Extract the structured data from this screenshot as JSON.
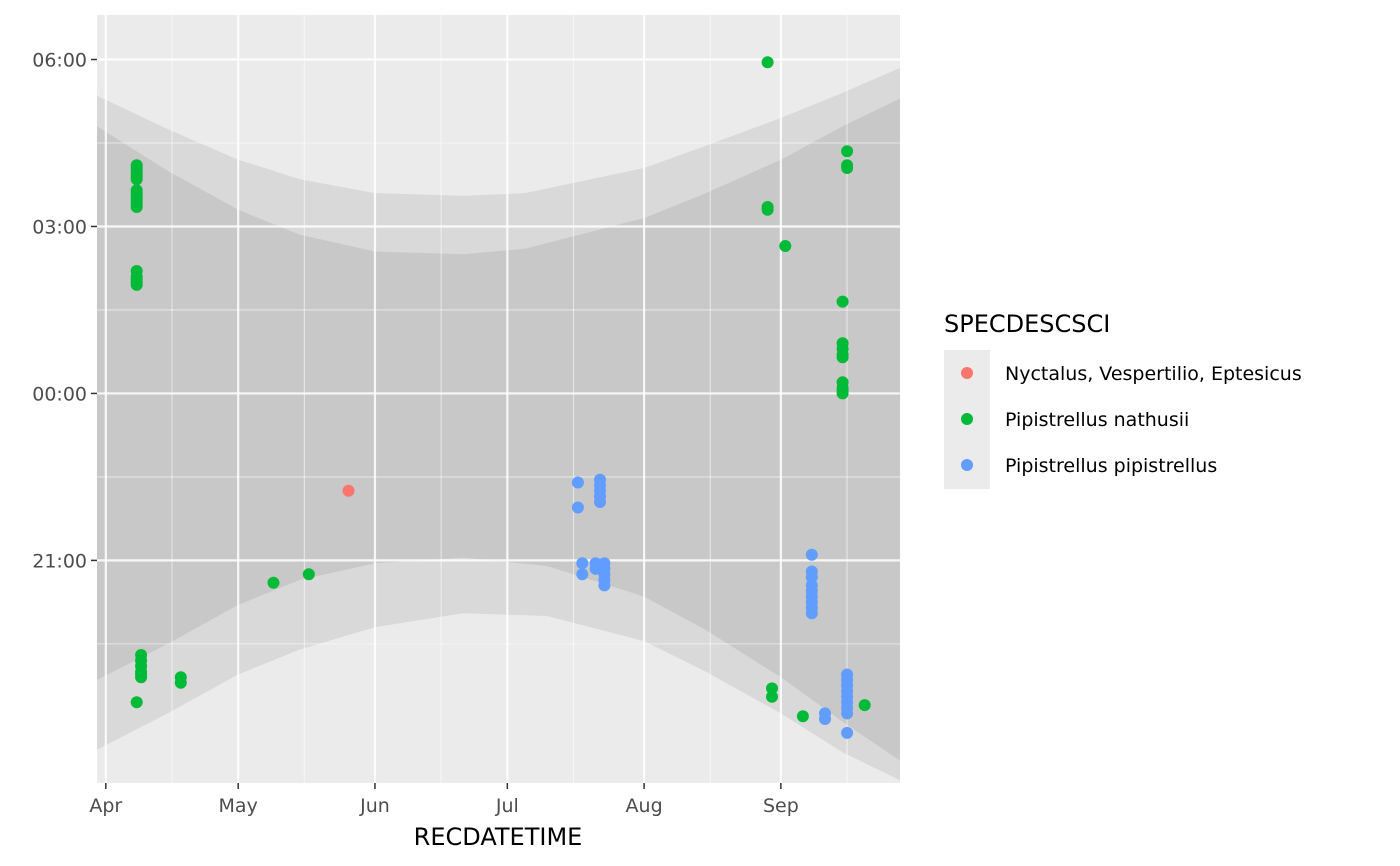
{
  "chart_data": {
    "type": "scatter",
    "xlabel": "RECDATETIME",
    "ylabel": "",
    "x_axis_type": "date",
    "y_axis_type": "time-of-night",
    "xlim": [
      "2023-03-30",
      "2023-09-28"
    ],
    "ylim_hours": [
      17.0,
      30.8
    ],
    "x_ticks": [
      {
        "date": "2023-04-01",
        "label": "Apr"
      },
      {
        "date": "2023-05-01",
        "label": "May"
      },
      {
        "date": "2023-06-01",
        "label": "Jun"
      },
      {
        "date": "2023-07-01",
        "label": "Jul"
      },
      {
        "date": "2023-08-01",
        "label": "Aug"
      },
      {
        "date": "2023-09-01",
        "label": "Sep"
      }
    ],
    "x_minor_dates": [
      "2023-04-16",
      "2023-05-16",
      "2023-06-16",
      "2023-07-16",
      "2023-08-16",
      "2023-09-16"
    ],
    "y_ticks": [
      {
        "hour": 21,
        "label": "21:00"
      },
      {
        "hour": 24,
        "label": "00:00"
      },
      {
        "hour": 27,
        "label": "03:00"
      },
      {
        "hour": 30,
        "label": "06:00"
      }
    ],
    "y_minor_hours": [
      19.5,
      22.5,
      25.5,
      28.5
    ],
    "grid": true,
    "legend": {
      "title": "SPECDESCSCI",
      "position": "right"
    },
    "bands": [
      {
        "name": "night",
        "color": "#c8c8c8",
        "lower": [
          [
            "2023-03-30",
            18.85
          ],
          [
            "2023-04-15",
            19.5
          ],
          [
            "2023-05-01",
            20.2
          ],
          [
            "2023-05-15",
            20.65
          ],
          [
            "2023-06-01",
            20.95
          ],
          [
            "2023-06-21",
            21.05
          ],
          [
            "2023-07-10",
            20.9
          ],
          [
            "2023-08-01",
            20.35
          ],
          [
            "2023-08-15",
            19.75
          ],
          [
            "2023-09-01",
            18.9
          ],
          [
            "2023-09-15",
            18.1
          ],
          [
            "2023-09-28",
            17.4
          ]
        ],
        "upper": [
          [
            "2023-03-30",
            28.8
          ],
          [
            "2023-04-15",
            28.0
          ],
          [
            "2023-05-01",
            27.3
          ],
          [
            "2023-05-15",
            26.85
          ],
          [
            "2023-06-01",
            26.55
          ],
          [
            "2023-06-21",
            26.5
          ],
          [
            "2023-07-05",
            26.6
          ],
          [
            "2023-08-01",
            27.15
          ],
          [
            "2023-08-15",
            27.6
          ],
          [
            "2023-09-01",
            28.2
          ],
          [
            "2023-09-15",
            28.8
          ],
          [
            "2023-09-28",
            29.3
          ]
        ]
      },
      {
        "name": "twilight",
        "color": "#d9d9d9",
        "lower": [
          [
            "2023-03-30",
            17.6
          ],
          [
            "2023-04-15",
            18.25
          ],
          [
            "2023-05-01",
            18.95
          ],
          [
            "2023-05-15",
            19.4
          ],
          [
            "2023-06-01",
            19.8
          ],
          [
            "2023-06-21",
            20.05
          ],
          [
            "2023-07-10",
            20.0
          ],
          [
            "2023-08-01",
            19.55
          ],
          [
            "2023-08-15",
            19.0
          ],
          [
            "2023-09-01",
            18.25
          ],
          [
            "2023-09-15",
            17.55
          ],
          [
            "2023-09-28",
            17.05
          ]
        ],
        "upper": [
          [
            "2023-03-30",
            29.35
          ],
          [
            "2023-04-15",
            28.75
          ],
          [
            "2023-05-01",
            28.2
          ],
          [
            "2023-05-15",
            27.85
          ],
          [
            "2023-06-01",
            27.6
          ],
          [
            "2023-06-21",
            27.55
          ],
          [
            "2023-07-05",
            27.6
          ],
          [
            "2023-08-01",
            28.05
          ],
          [
            "2023-08-15",
            28.45
          ],
          [
            "2023-09-01",
            28.95
          ],
          [
            "2023-09-15",
            29.4
          ],
          [
            "2023-09-28",
            29.85
          ]
        ]
      }
    ],
    "series": [
      {
        "name": "Nyctalus, Vespertilio, Eptesicus",
        "color": "#F8766D",
        "points": [
          [
            "2023-05-26",
            22.25
          ]
        ]
      },
      {
        "name": "Pipistrellus nathusii",
        "color": "#00BA38",
        "points": [
          [
            "2023-04-08",
            28.1
          ],
          [
            "2023-04-08",
            28.05
          ],
          [
            "2023-04-08",
            28.0
          ],
          [
            "2023-04-08",
            27.95
          ],
          [
            "2023-04-08",
            27.9
          ],
          [
            "2023-04-08",
            27.85
          ],
          [
            "2023-04-08",
            27.65
          ],
          [
            "2023-04-08",
            27.6
          ],
          [
            "2023-04-08",
            27.55
          ],
          [
            "2023-04-08",
            27.5
          ],
          [
            "2023-04-08",
            27.45
          ],
          [
            "2023-04-08",
            27.4
          ],
          [
            "2023-04-08",
            27.35
          ],
          [
            "2023-04-08",
            26.2
          ],
          [
            "2023-04-08",
            26.1
          ],
          [
            "2023-04-08",
            26.05
          ],
          [
            "2023-04-08",
            26.0
          ],
          [
            "2023-04-08",
            25.95
          ],
          [
            "2023-04-09",
            19.3
          ],
          [
            "2023-04-09",
            19.2
          ],
          [
            "2023-04-09",
            19.1
          ],
          [
            "2023-04-09",
            19.0
          ],
          [
            "2023-04-09",
            18.95
          ],
          [
            "2023-04-09",
            18.9
          ],
          [
            "2023-04-08",
            18.45
          ],
          [
            "2023-04-18",
            18.9
          ],
          [
            "2023-04-18",
            18.8
          ],
          [
            "2023-05-09",
            20.6
          ],
          [
            "2023-05-17",
            20.75
          ],
          [
            "2023-08-29",
            29.95
          ],
          [
            "2023-08-29",
            27.35
          ],
          [
            "2023-08-29",
            27.3
          ],
          [
            "2023-09-02",
            26.65
          ],
          [
            "2023-08-30",
            18.7
          ],
          [
            "2023-08-30",
            18.55
          ],
          [
            "2023-09-06",
            18.2
          ],
          [
            "2023-09-15",
            25.65
          ],
          [
            "2023-09-15",
            24.9
          ],
          [
            "2023-09-15",
            24.8
          ],
          [
            "2023-09-15",
            24.7
          ],
          [
            "2023-09-15",
            24.65
          ],
          [
            "2023-09-15",
            24.2
          ],
          [
            "2023-09-15",
            24.1
          ],
          [
            "2023-09-15",
            24.05
          ],
          [
            "2023-09-15",
            24.0
          ],
          [
            "2023-09-16",
            28.35
          ],
          [
            "2023-09-16",
            28.1
          ],
          [
            "2023-09-16",
            28.05
          ],
          [
            "2023-09-20",
            18.4
          ]
        ]
      },
      {
        "name": "Pipistrellus pipistrellus",
        "color": "#619CFF",
        "points": [
          [
            "2023-07-17",
            22.4
          ],
          [
            "2023-07-17",
            21.95
          ],
          [
            "2023-07-22",
            22.45
          ],
          [
            "2023-07-22",
            22.35
          ],
          [
            "2023-07-22",
            22.25
          ],
          [
            "2023-07-22",
            22.15
          ],
          [
            "2023-07-22",
            22.05
          ],
          [
            "2023-07-18",
            20.95
          ],
          [
            "2023-07-18",
            20.75
          ],
          [
            "2023-07-21",
            20.95
          ],
          [
            "2023-07-21",
            20.85
          ],
          [
            "2023-07-23",
            20.95
          ],
          [
            "2023-07-23",
            20.85
          ],
          [
            "2023-07-23",
            20.75
          ],
          [
            "2023-07-23",
            20.65
          ],
          [
            "2023-07-23",
            20.55
          ],
          [
            "2023-09-08",
            21.1
          ],
          [
            "2023-09-08",
            20.8
          ],
          [
            "2023-09-08",
            20.7
          ],
          [
            "2023-09-08",
            20.55
          ],
          [
            "2023-09-08",
            20.45
          ],
          [
            "2023-09-08",
            20.35
          ],
          [
            "2023-09-08",
            20.25
          ],
          [
            "2023-09-08",
            20.15
          ],
          [
            "2023-09-08",
            20.05
          ],
          [
            "2023-09-11",
            18.25
          ],
          [
            "2023-09-11",
            18.15
          ],
          [
            "2023-09-16",
            18.95
          ],
          [
            "2023-09-16",
            18.85
          ],
          [
            "2023-09-16",
            18.75
          ],
          [
            "2023-09-16",
            18.65
          ],
          [
            "2023-09-16",
            18.55
          ],
          [
            "2023-09-16",
            18.45
          ],
          [
            "2023-09-16",
            18.35
          ],
          [
            "2023-09-16",
            18.25
          ],
          [
            "2023-09-16",
            17.9
          ]
        ]
      }
    ]
  }
}
